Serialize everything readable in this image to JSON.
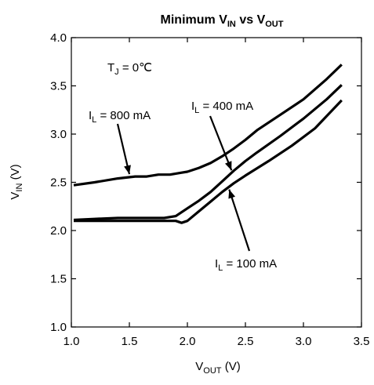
{
  "chart_data": {
    "type": "line",
    "title": {
      "main": "Minimum V",
      "sub1": "IN",
      "mid": " vs V",
      "sub2": "OUT"
    },
    "xlabel": {
      "main": "V",
      "sub": "OUT",
      "unit": " (V)"
    },
    "ylabel": {
      "main": "V",
      "sub": "IN",
      "unit": " (V)"
    },
    "xlim": [
      1.0,
      3.5
    ],
    "ylim": [
      1.0,
      4.0
    ],
    "x_ticks": [
      "1.0",
      "1.5",
      "2.0",
      "2.5",
      "3.0",
      "3.5"
    ],
    "y_ticks": [
      "1.0",
      "1.5",
      "2.0",
      "2.5",
      "3.0",
      "3.5",
      "4.0"
    ],
    "grid": false,
    "condition": {
      "main": "T",
      "sub": "J",
      "rest": " = 0℃"
    },
    "series": [
      {
        "name": "I_L = 800 mA",
        "label": {
          "main": "I",
          "sub": "L",
          "rest": " = 800 mA"
        },
        "x": [
          1.02,
          1.2,
          1.4,
          1.55,
          1.65,
          1.75,
          1.85,
          1.95,
          2.0,
          2.1,
          2.2,
          2.3,
          2.4,
          2.5,
          2.6,
          2.8,
          3.0,
          3.2,
          3.33
        ],
        "y": [
          2.47,
          2.5,
          2.54,
          2.56,
          2.56,
          2.58,
          2.58,
          2.6,
          2.61,
          2.65,
          2.7,
          2.77,
          2.85,
          2.94,
          3.04,
          3.2,
          3.36,
          3.57,
          3.72
        ]
      },
      {
        "name": "I_L = 400 mA",
        "label": {
          "main": "I",
          "sub": "L",
          "rest": " = 400 mA"
        },
        "x": [
          1.02,
          1.2,
          1.4,
          1.6,
          1.8,
          1.9,
          2.0,
          2.1,
          2.2,
          2.3,
          2.4,
          2.5,
          2.6,
          2.8,
          3.0,
          3.2,
          3.33
        ],
        "y": [
          2.11,
          2.12,
          2.13,
          2.13,
          2.13,
          2.15,
          2.23,
          2.31,
          2.4,
          2.51,
          2.62,
          2.72,
          2.81,
          2.98,
          3.16,
          3.36,
          3.51
        ]
      },
      {
        "name": "I_L = 100 mA",
        "label": {
          "main": "I",
          "sub": "L",
          "rest": " = 100 mA"
        },
        "x": [
          1.02,
          1.3,
          1.6,
          1.9,
          1.95,
          2.0,
          2.1,
          2.2,
          2.3,
          2.4,
          2.5,
          2.7,
          2.9,
          3.1,
          3.33
        ],
        "y": [
          2.1,
          2.1,
          2.1,
          2.1,
          2.08,
          2.1,
          2.2,
          2.3,
          2.4,
          2.49,
          2.57,
          2.72,
          2.88,
          3.06,
          3.35
        ]
      }
    ]
  }
}
